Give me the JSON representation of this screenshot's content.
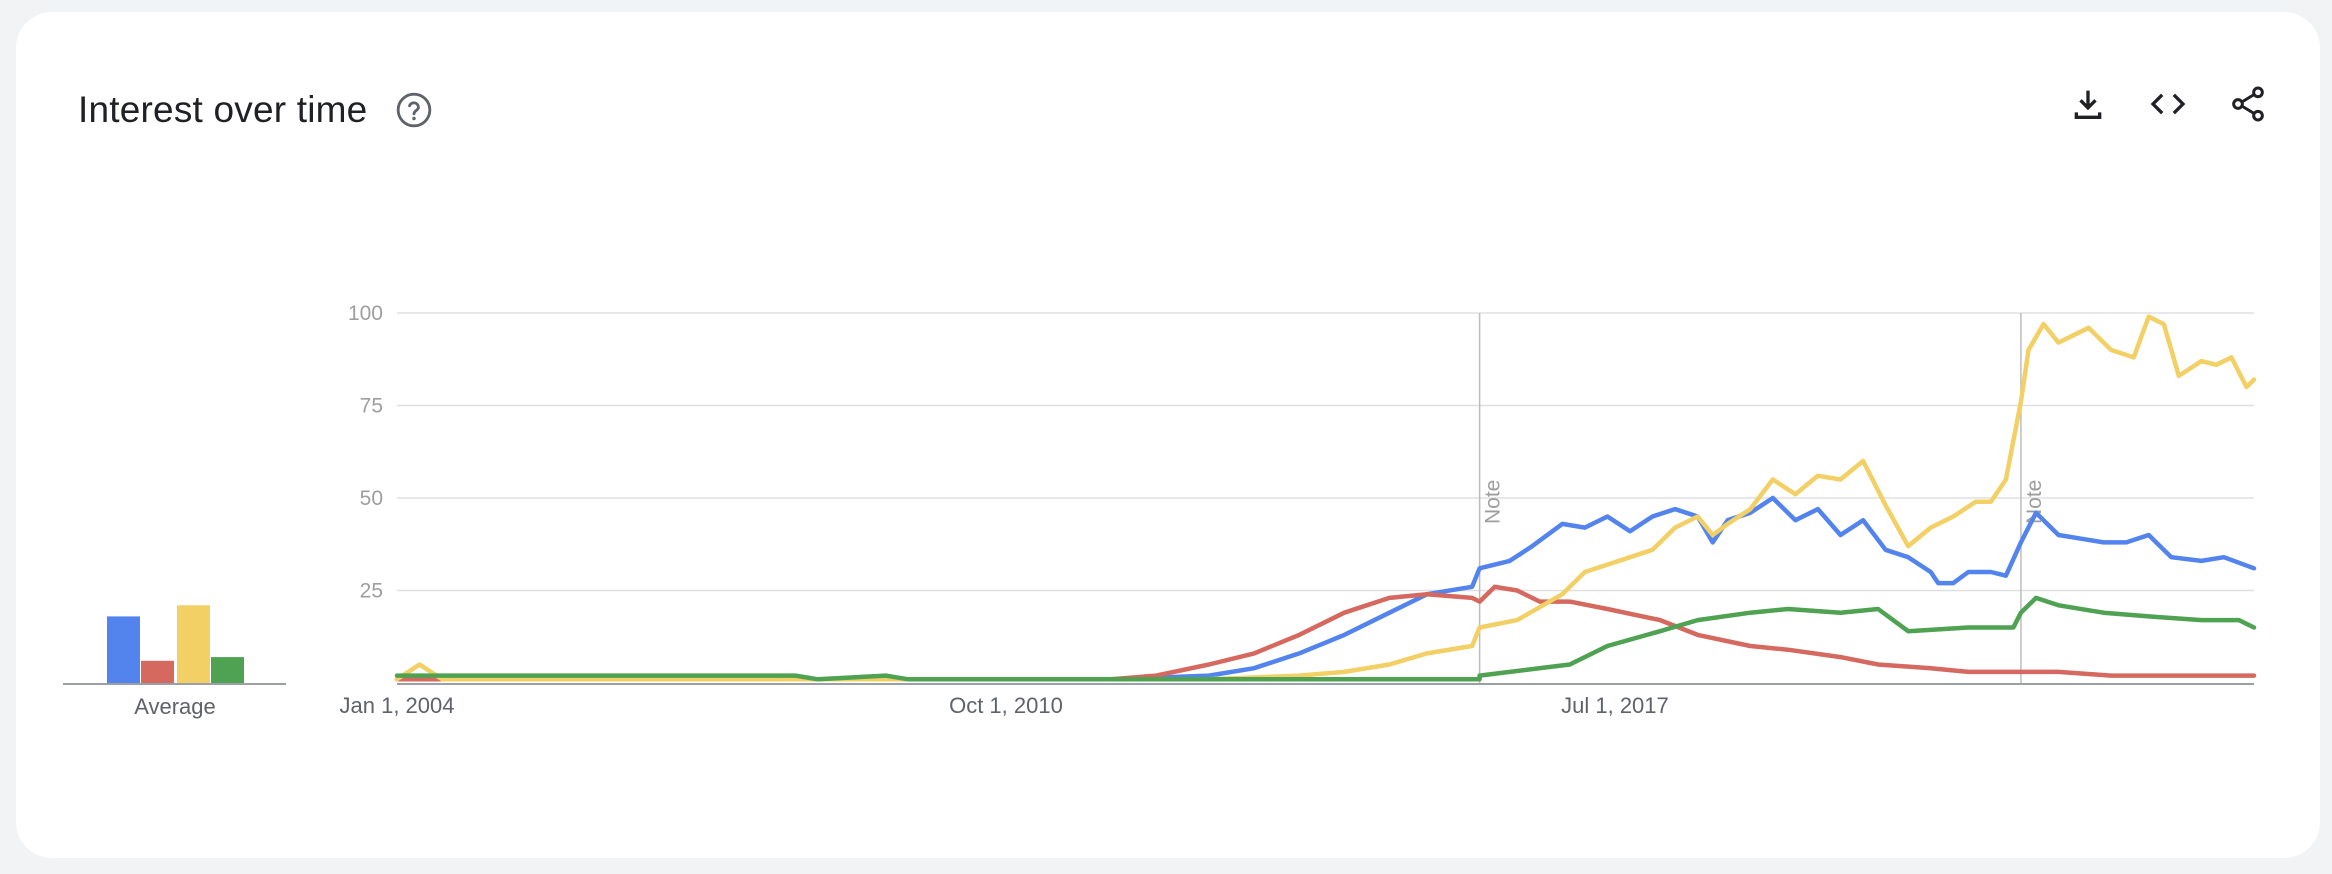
{
  "header": {
    "title": "Interest over time"
  },
  "icons": {
    "help": "help-circle-icon",
    "download": "download-icon",
    "embed": "code-icon",
    "share": "share-icon"
  },
  "colors": {
    "blue": "#5384ee",
    "red": "#d6695f",
    "yellow": "#f2d065",
    "green": "#4fa251",
    "grid": "#e0e0e0",
    "axis": "#9aa0a6",
    "note": "#bdbdbd"
  },
  "average": {
    "label": "Average",
    "values": [
      18,
      6,
      21,
      7
    ]
  },
  "chart_data": {
    "type": "line",
    "x_range": [
      "2004-01",
      "2024-08"
    ],
    "ylim": [
      0,
      100
    ],
    "y_ticks": [
      "100",
      "75",
      "50",
      "25"
    ],
    "x_ticks": [
      {
        "label": "Jan 1, 2004",
        "x": "2004-01"
      },
      {
        "label": "Oct 1, 2010",
        "x": "2010-10"
      },
      {
        "label": "Jul 1, 2017",
        "x": "2017-07"
      }
    ],
    "notes": [
      {
        "label": "Note",
        "x": "2016-01"
      },
      {
        "label": "Note",
        "x": "2022-01"
      }
    ],
    "series": [
      {
        "color": "blue",
        "points": [
          [
            "2004-01",
            1
          ],
          [
            "2011-12",
            1
          ],
          [
            "2013-01",
            2
          ],
          [
            "2013-07",
            4
          ],
          [
            "2014-01",
            8
          ],
          [
            "2014-07",
            13
          ],
          [
            "2015-01",
            19
          ],
          [
            "2015-06",
            24
          ],
          [
            "2015-12",
            26
          ],
          [
            "2016-01",
            31
          ],
          [
            "2016-05",
            33
          ],
          [
            "2016-08",
            37
          ],
          [
            "2016-12",
            43
          ],
          [
            "2017-03",
            42
          ],
          [
            "2017-06",
            45
          ],
          [
            "2017-09",
            41
          ],
          [
            "2017-12",
            45
          ],
          [
            "2018-03",
            47
          ],
          [
            "2018-06",
            45
          ],
          [
            "2018-08",
            38
          ],
          [
            "2018-10",
            44
          ],
          [
            "2019-01",
            46
          ],
          [
            "2019-04",
            50
          ],
          [
            "2019-07",
            44
          ],
          [
            "2019-10",
            47
          ],
          [
            "2020-01",
            40
          ],
          [
            "2020-04",
            44
          ],
          [
            "2020-07",
            36
          ],
          [
            "2020-10",
            34
          ],
          [
            "2021-01",
            30
          ],
          [
            "2021-02",
            27
          ],
          [
            "2021-04",
            27
          ],
          [
            "2021-06",
            30
          ],
          [
            "2021-09",
            30
          ],
          [
            "2021-11",
            29
          ],
          [
            "2022-01",
            38
          ],
          [
            "2022-03",
            46
          ],
          [
            "2022-06",
            40
          ],
          [
            "2022-09",
            39
          ],
          [
            "2022-12",
            38
          ],
          [
            "2023-03",
            38
          ],
          [
            "2023-06",
            40
          ],
          [
            "2023-09",
            34
          ],
          [
            "2024-01",
            33
          ],
          [
            "2024-04",
            34
          ],
          [
            "2024-08",
            31
          ]
        ]
      },
      {
        "color": "red",
        "points": [
          [
            "2004-01",
            1
          ],
          [
            "2011-12",
            1
          ],
          [
            "2012-06",
            2
          ],
          [
            "2013-01",
            5
          ],
          [
            "2013-07",
            8
          ],
          [
            "2014-01",
            13
          ],
          [
            "2014-07",
            19
          ],
          [
            "2015-01",
            23
          ],
          [
            "2015-06",
            24
          ],
          [
            "2015-12",
            23
          ],
          [
            "2016-01",
            22
          ],
          [
            "2016-03",
            26
          ],
          [
            "2016-06",
            25
          ],
          [
            "2016-09",
            22
          ],
          [
            "2017-01",
            22
          ],
          [
            "2017-06",
            20
          ],
          [
            "2018-01",
            17
          ],
          [
            "2018-06",
            13
          ],
          [
            "2019-01",
            10
          ],
          [
            "2019-06",
            9
          ],
          [
            "2020-01",
            7
          ],
          [
            "2020-06",
            5
          ],
          [
            "2021-01",
            4
          ],
          [
            "2021-06",
            3
          ],
          [
            "2022-01",
            3
          ],
          [
            "2022-06",
            3
          ],
          [
            "2023-01",
            2
          ],
          [
            "2024-08",
            2
          ]
        ]
      },
      {
        "color": "yellow",
        "points": [
          [
            "2004-01",
            1
          ],
          [
            "2004-04",
            5
          ],
          [
            "2004-07",
            1
          ],
          [
            "2013-01",
            1
          ],
          [
            "2014-01",
            2
          ],
          [
            "2014-07",
            3
          ],
          [
            "2015-01",
            5
          ],
          [
            "2015-06",
            8
          ],
          [
            "2015-12",
            10
          ],
          [
            "2016-01",
            15
          ],
          [
            "2016-06",
            17
          ],
          [
            "2016-12",
            24
          ],
          [
            "2017-03",
            30
          ],
          [
            "2017-06",
            32
          ],
          [
            "2017-09",
            34
          ],
          [
            "2017-12",
            36
          ],
          [
            "2018-03",
            42
          ],
          [
            "2018-06",
            45
          ],
          [
            "2018-08",
            40
          ],
          [
            "2018-10",
            43
          ],
          [
            "2019-01",
            47
          ],
          [
            "2019-04",
            55
          ],
          [
            "2019-07",
            51
          ],
          [
            "2019-10",
            56
          ],
          [
            "2020-01",
            55
          ],
          [
            "2020-04",
            60
          ],
          [
            "2020-07",
            48
          ],
          [
            "2020-10",
            37
          ],
          [
            "2021-01",
            42
          ],
          [
            "2021-04",
            45
          ],
          [
            "2021-07",
            49
          ],
          [
            "2021-09",
            49
          ],
          [
            "2021-11",
            55
          ],
          [
            "2022-01",
            76
          ],
          [
            "2022-02",
            90
          ],
          [
            "2022-04",
            97
          ],
          [
            "2022-06",
            92
          ],
          [
            "2022-08",
            94
          ],
          [
            "2022-10",
            96
          ],
          [
            "2023-01",
            90
          ],
          [
            "2023-04",
            88
          ],
          [
            "2023-06",
            99
          ],
          [
            "2023-08",
            97
          ],
          [
            "2023-10",
            83
          ],
          [
            "2024-01",
            87
          ],
          [
            "2024-03",
            86
          ],
          [
            "2024-05",
            88
          ],
          [
            "2024-07",
            80
          ],
          [
            "2024-08",
            82
          ]
        ]
      },
      {
        "color": "green",
        "points": [
          [
            "2004-01",
            2
          ],
          [
            "2008-06",
            2
          ],
          [
            "2008-09",
            1
          ],
          [
            "2009-06",
            2
          ],
          [
            "2009-09",
            1
          ],
          [
            "2016-01",
            1
          ],
          [
            "2016-01",
            2
          ],
          [
            "2017-01",
            5
          ],
          [
            "2017-06",
            10
          ],
          [
            "2018-01",
            14
          ],
          [
            "2018-06",
            17
          ],
          [
            "2019-01",
            19
          ],
          [
            "2019-06",
            20
          ],
          [
            "2020-01",
            19
          ],
          [
            "2020-06",
            20
          ],
          [
            "2020-10",
            14
          ],
          [
            "2021-06",
            15
          ],
          [
            "2021-12",
            15
          ],
          [
            "2022-01",
            19
          ],
          [
            "2022-03",
            23
          ],
          [
            "2022-06",
            21
          ],
          [
            "2022-12",
            19
          ],
          [
            "2023-06",
            18
          ],
          [
            "2024-01",
            17
          ],
          [
            "2024-06",
            17
          ],
          [
            "2024-08",
            15
          ]
        ]
      }
    ]
  }
}
